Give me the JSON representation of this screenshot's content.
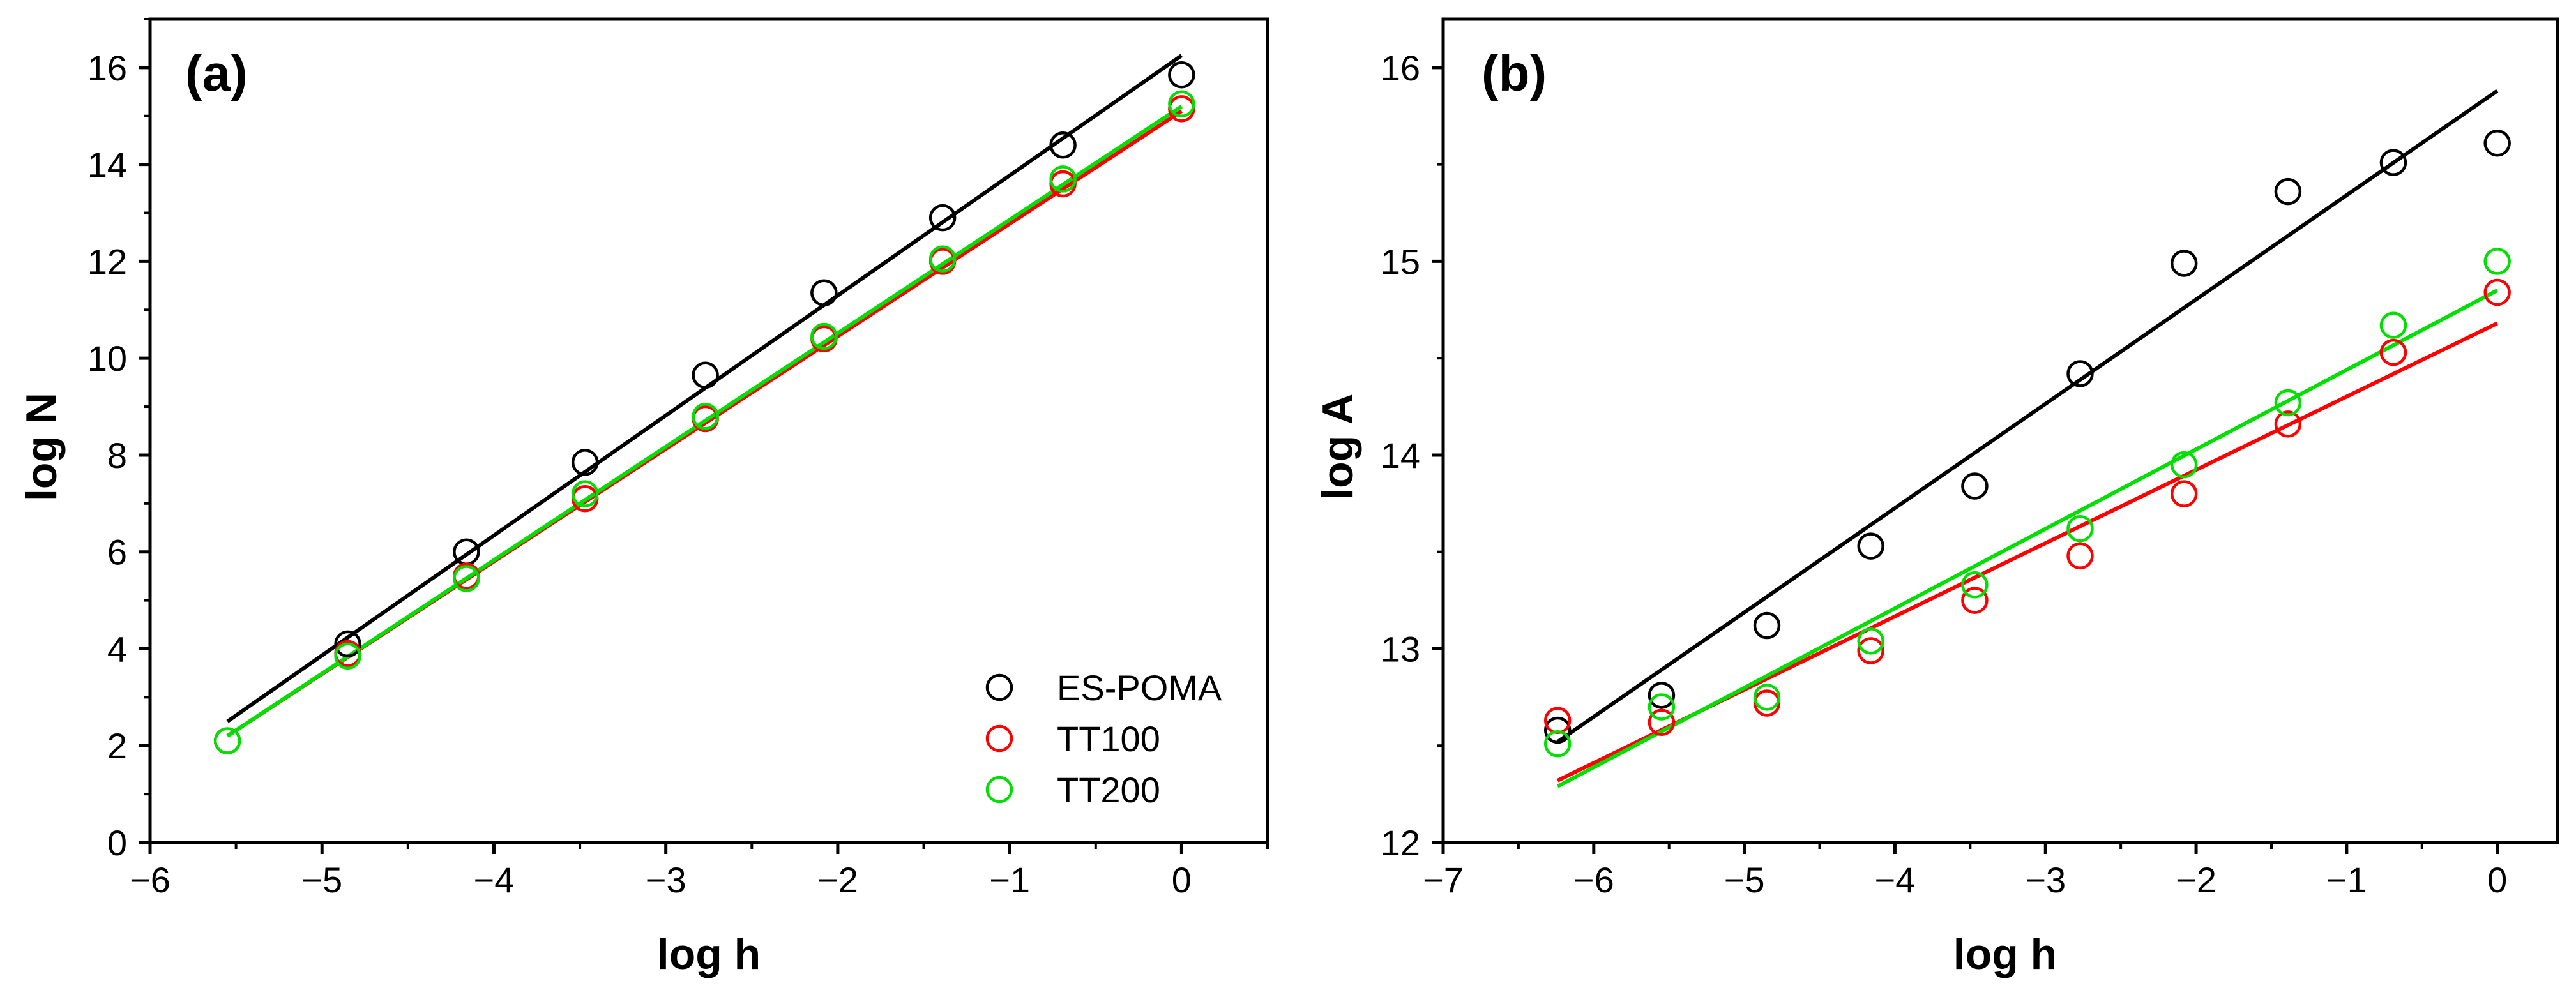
{
  "chart_data": [
    {
      "type": "scatter",
      "panel_label": "(a)",
      "xlabel": "log h",
      "ylabel": "log N",
      "xlim": [
        -6,
        0.5
      ],
      "ylim": [
        0,
        17
      ],
      "xticks": [
        -6,
        -5,
        -4,
        -3,
        -2,
        -1,
        0
      ],
      "yticks": [
        0,
        2,
        4,
        6,
        8,
        10,
        12,
        14,
        16
      ],
      "xtick_labels": [
        "−6",
        "−5",
        "−4",
        "−3",
        "−2",
        "−1",
        "0"
      ],
      "ytick_labels": [
        "0",
        "2",
        "4",
        "6",
        "8",
        "10",
        "12",
        "14",
        "16"
      ],
      "legend": {
        "position": "lower-right",
        "entries": [
          {
            "label": "ES-POMA",
            "color": "#000000"
          },
          {
            "label": "TT100",
            "color": "#ff0000"
          },
          {
            "label": "TT200",
            "color": "#00e000"
          }
        ]
      },
      "series": [
        {
          "name": "ES-POMA",
          "color": "#000000",
          "x": [
            -4.85,
            -4.16,
            -3.47,
            -2.77,
            -2.08,
            -1.39,
            -0.69,
            0
          ],
          "y": [
            4.1,
            6.0,
            7.85,
            9.65,
            11.35,
            12.9,
            14.4,
            15.85
          ],
          "fit": {
            "x": [
              -5.55,
              0
            ],
            "y": [
              2.5,
              16.25
            ]
          }
        },
        {
          "name": "TT100",
          "color": "#ff0000",
          "x": [
            -5.55,
            -4.85,
            -4.16,
            -3.47,
            -2.77,
            -2.08,
            -1.39,
            -0.69,
            0
          ],
          "y": [
            2.1,
            3.9,
            5.5,
            7.1,
            8.75,
            10.4,
            12.0,
            13.6,
            15.15
          ],
          "fit": {
            "x": [
              -5.55,
              0
            ],
            "y": [
              2.2,
              15.1
            ]
          }
        },
        {
          "name": "TT200",
          "color": "#00e000",
          "x": [
            -5.55,
            -4.85,
            -4.16,
            -3.47,
            -2.77,
            -2.08,
            -1.39,
            -0.69,
            0
          ],
          "y": [
            2.1,
            3.85,
            5.45,
            7.2,
            8.8,
            10.45,
            12.05,
            13.7,
            15.25
          ],
          "fit": {
            "x": [
              -5.55,
              0
            ],
            "y": [
              2.2,
              15.2
            ]
          }
        }
      ]
    },
    {
      "type": "scatter",
      "panel_label": "(b)",
      "xlabel": "log h",
      "ylabel": "log A",
      "xlim": [
        -7,
        0.4
      ],
      "ylim": [
        12,
        16.25
      ],
      "xticks": [
        -7,
        -6,
        -5,
        -4,
        -3,
        -2,
        -1,
        0
      ],
      "yticks": [
        12,
        13,
        14,
        15,
        16
      ],
      "xtick_labels": [
        "−7",
        "−6",
        "−5",
        "−4",
        "−3",
        "−2",
        "−1",
        "0"
      ],
      "ytick_labels": [
        "12",
        "13",
        "14",
        "15",
        "16"
      ],
      "series": [
        {
          "name": "ES-POMA",
          "color": "#000000",
          "x": [
            -6.24,
            -5.55,
            -4.85,
            -4.16,
            -3.47,
            -2.77,
            -2.08,
            -1.39,
            -0.69,
            0
          ],
          "y": [
            12.58,
            12.76,
            13.12,
            13.53,
            13.84,
            14.42,
            14.99,
            15.36,
            15.51,
            15.61
          ],
          "fit": {
            "x": [
              -6.24,
              0
            ],
            "y": [
              12.52,
              15.88
            ]
          }
        },
        {
          "name": "TT100",
          "color": "#ff0000",
          "x": [
            -6.24,
            -5.55,
            -4.85,
            -4.16,
            -3.47,
            -2.77,
            -2.08,
            -1.39,
            -0.69,
            0
          ],
          "y": [
            12.63,
            12.62,
            12.72,
            12.99,
            13.25,
            13.48,
            13.8,
            14.16,
            14.53,
            14.84
          ],
          "fit": {
            "x": [
              -6.24,
              0
            ],
            "y": [
              12.32,
              14.68
            ]
          }
        },
        {
          "name": "TT200",
          "color": "#00e000",
          "x": [
            -6.24,
            -5.55,
            -4.85,
            -4.16,
            -3.47,
            -2.77,
            -2.08,
            -1.39,
            -0.69,
            0
          ],
          "y": [
            12.51,
            12.7,
            12.75,
            13.04,
            13.33,
            13.62,
            13.95,
            14.27,
            14.67,
            15.0
          ],
          "fit": {
            "x": [
              -6.24,
              0
            ],
            "y": [
              12.29,
              14.85
            ]
          }
        }
      ]
    }
  ]
}
